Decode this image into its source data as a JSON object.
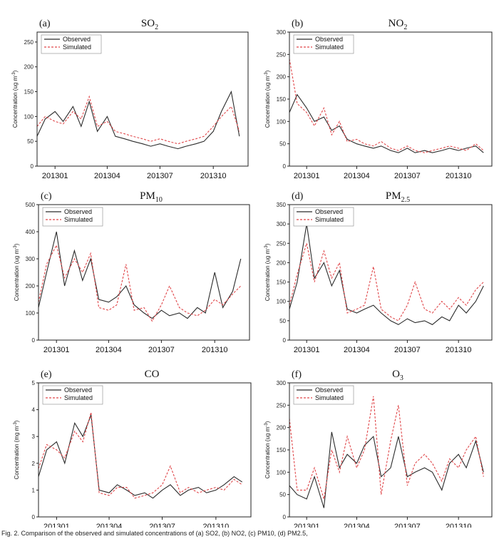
{
  "caption": "Fig. 2. Comparison of the observed and simulated concentrations of (a) SO2, (b) NO2, (c) PM10, (d) PM2.5,",
  "colors": {
    "observed": "#2b2b2b",
    "simulated": "#e0474a"
  },
  "chart_data": [
    {
      "panel": "(a)",
      "title": "SO",
      "title_sub": "2",
      "type": "line",
      "ylabel": "Concentration (ug m-3)",
      "yunit_sup": "-3",
      "ylim": [
        0,
        270
      ],
      "yticks": [
        0,
        50,
        100,
        150,
        200,
        250
      ],
      "xticks": [
        "201301",
        "201304",
        "201307",
        "201310"
      ],
      "x": [
        "2012-12-01",
        "2012-12-15",
        "2013-01-01",
        "2013-01-15",
        "2013-02-01",
        "2013-02-15",
        "2013-03-01",
        "2013-03-15",
        "2013-04-01",
        "2013-04-15",
        "2013-05-01",
        "2013-05-15",
        "2013-06-01",
        "2013-06-15",
        "2013-07-01",
        "2013-07-15",
        "2013-08-01",
        "2013-08-15",
        "2013-09-01",
        "2013-09-15",
        "2013-10-01",
        "2013-10-15",
        "2013-11-01",
        "2013-11-15"
      ],
      "series": [
        {
          "name": "Observed",
          "values": [
            60,
            95,
            110,
            90,
            120,
            80,
            130,
            70,
            100,
            60,
            55,
            50,
            45,
            40,
            45,
            40,
            35,
            40,
            45,
            50,
            70,
            110,
            150,
            60
          ]
        },
        {
          "name": "Simulated",
          "values": [
            80,
            100,
            90,
            85,
            110,
            95,
            140,
            80,
            90,
            70,
            65,
            60,
            55,
            50,
            55,
            50,
            45,
            50,
            55,
            60,
            80,
            100,
            120,
            70
          ]
        }
      ]
    },
    {
      "panel": "(b)",
      "title": "NO",
      "title_sub": "2",
      "type": "line",
      "ylabel": "Concentration (ug m-3)",
      "yunit_sup": "-3",
      "ylim": [
        0,
        300
      ],
      "yticks": [
        0,
        50,
        100,
        150,
        200,
        250,
        300
      ],
      "xticks": [
        "201301",
        "201304",
        "201307",
        "201310"
      ],
      "x": [
        "2012-12-01",
        "2012-12-15",
        "2013-01-01",
        "2013-01-15",
        "2013-02-01",
        "2013-02-15",
        "2013-03-01",
        "2013-03-15",
        "2013-04-01",
        "2013-04-15",
        "2013-05-01",
        "2013-05-15",
        "2013-06-01",
        "2013-06-15",
        "2013-07-01",
        "2013-07-15",
        "2013-08-01",
        "2013-08-15",
        "2013-09-01",
        "2013-09-15",
        "2013-10-01",
        "2013-10-15",
        "2013-11-01",
        "2013-11-15"
      ],
      "series": [
        {
          "name": "Observed",
          "values": [
            120,
            160,
            130,
            100,
            110,
            80,
            90,
            60,
            50,
            45,
            40,
            45,
            35,
            30,
            40,
            30,
            35,
            30,
            35,
            40,
            35,
            40,
            45,
            30
          ]
        },
        {
          "name": "Simulated",
          "values": [
            240,
            140,
            120,
            90,
            130,
            70,
            100,
            55,
            60,
            50,
            45,
            55,
            40,
            35,
            45,
            35,
            30,
            35,
            40,
            45,
            40,
            35,
            50,
            35
          ]
        }
      ]
    },
    {
      "panel": "(c)",
      "title": "PM",
      "title_sub": "10",
      "type": "line",
      "ylabel": "Concentration (ug m-3)",
      "yunit_sup": "-3",
      "ylim": [
        0,
        500
      ],
      "yticks": [
        0,
        100,
        200,
        300,
        400,
        500
      ],
      "xticks": [
        "201301",
        "201304",
        "201307",
        "201310"
      ],
      "x": [
        "2012-12-01",
        "2012-12-15",
        "2013-01-01",
        "2013-01-15",
        "2013-02-01",
        "2013-02-15",
        "2013-03-01",
        "2013-03-15",
        "2013-04-01",
        "2013-04-15",
        "2013-05-01",
        "2013-05-15",
        "2013-06-01",
        "2013-06-15",
        "2013-07-01",
        "2013-07-15",
        "2013-08-01",
        "2013-08-15",
        "2013-09-01",
        "2013-09-15",
        "2013-10-01",
        "2013-10-15",
        "2013-11-01",
        "2013-11-15"
      ],
      "series": [
        {
          "name": "Observed",
          "values": [
            120,
            250,
            400,
            200,
            330,
            220,
            300,
            150,
            140,
            160,
            200,
            130,
            100,
            80,
            110,
            90,
            100,
            80,
            120,
            100,
            250,
            120,
            180,
            300
          ]
        },
        {
          "name": "Simulated",
          "values": [
            140,
            280,
            350,
            230,
            300,
            250,
            320,
            120,
            110,
            130,
            280,
            110,
            120,
            70,
            130,
            200,
            120,
            100,
            90,
            110,
            150,
            130,
            170,
            200
          ]
        }
      ]
    },
    {
      "panel": "(d)",
      "title": "PM",
      "title_sub": "2.5",
      "type": "line",
      "ylabel": "Concentration (ug m-3)",
      "yunit_sup": "-3",
      "ylim": [
        0,
        350
      ],
      "yticks": [
        0,
        50,
        100,
        150,
        200,
        250,
        300,
        350
      ],
      "xticks": [
        "201301",
        "201304",
        "201307",
        "201310"
      ],
      "x": [
        "2012-12-01",
        "2012-12-15",
        "2013-01-01",
        "2013-01-15",
        "2013-02-01",
        "2013-02-15",
        "2013-03-01",
        "2013-03-15",
        "2013-04-01",
        "2013-04-15",
        "2013-05-01",
        "2013-05-15",
        "2013-06-01",
        "2013-06-15",
        "2013-07-01",
        "2013-07-15",
        "2013-08-01",
        "2013-08-15",
        "2013-09-01",
        "2013-09-15",
        "2013-10-01",
        "2013-10-15",
        "2013-11-01",
        "2013-11-15"
      ],
      "series": [
        {
          "name": "Observed",
          "values": [
            80,
            150,
            300,
            160,
            200,
            140,
            180,
            80,
            70,
            80,
            90,
            70,
            50,
            40,
            55,
            45,
            50,
            40,
            60,
            50,
            90,
            70,
            100,
            140
          ]
        },
        {
          "name": "Simulated",
          "values": [
            90,
            170,
            250,
            150,
            230,
            160,
            200,
            70,
            80,
            90,
            190,
            80,
            60,
            50,
            90,
            150,
            80,
            70,
            100,
            80,
            110,
            90,
            130,
            150
          ]
        }
      ]
    },
    {
      "panel": "(e)",
      "title": "CO",
      "title_sub": "",
      "type": "line",
      "ylabel": "Concentration (mg m-3)",
      "yunit_sup": "-3",
      "ylim": [
        0,
        5
      ],
      "yticks": [
        0,
        1,
        2,
        3,
        4,
        5
      ],
      "xticks": [
        "201301",
        "201304",
        "201307",
        "201310"
      ],
      "x": [
        "2012-12-01",
        "2012-12-15",
        "2013-01-01",
        "2013-01-15",
        "2013-02-01",
        "2013-02-15",
        "2013-03-01",
        "2013-03-15",
        "2013-04-01",
        "2013-04-15",
        "2013-05-01",
        "2013-05-15",
        "2013-06-01",
        "2013-06-15",
        "2013-07-01",
        "2013-07-15",
        "2013-08-01",
        "2013-08-15",
        "2013-09-01",
        "2013-09-15",
        "2013-10-01",
        "2013-10-15",
        "2013-11-01",
        "2013-11-15"
      ],
      "series": [
        {
          "name": "Observed",
          "values": [
            1.5,
            2.5,
            2.8,
            2.0,
            3.5,
            3.0,
            3.8,
            1.0,
            0.9,
            1.2,
            1.0,
            0.8,
            0.9,
            0.7,
            1.0,
            1.2,
            0.8,
            1.0,
            1.1,
            0.9,
            1.0,
            1.2,
            1.5,
            1.3
          ]
        },
        {
          "name": "Simulated",
          "values": [
            1.8,
            2.7,
            2.5,
            2.2,
            3.2,
            2.8,
            3.9,
            0.9,
            0.8,
            1.1,
            1.1,
            0.7,
            0.8,
            0.9,
            1.2,
            1.9,
            0.9,
            1.1,
            0.9,
            1.0,
            1.1,
            1.0,
            1.4,
            1.2
          ]
        }
      ]
    },
    {
      "panel": "(f)",
      "title": "O",
      "title_sub": "3",
      "type": "line",
      "ylabel": "Concentration (ug m-3)",
      "yunit_sup": "-3",
      "ylim": [
        0,
        300
      ],
      "yticks": [
        0,
        50,
        100,
        150,
        200,
        250,
        300
      ],
      "xticks": [
        "201301",
        "201304",
        "201307",
        "201310"
      ],
      "x": [
        "2012-12-01",
        "2012-12-15",
        "2013-01-01",
        "2013-01-15",
        "2013-02-01",
        "2013-02-15",
        "2013-03-01",
        "2013-03-15",
        "2013-04-01",
        "2013-04-15",
        "2013-05-01",
        "2013-05-15",
        "2013-06-01",
        "2013-06-15",
        "2013-07-01",
        "2013-07-15",
        "2013-08-01",
        "2013-08-15",
        "2013-09-01",
        "2013-09-15",
        "2013-10-01",
        "2013-10-15",
        "2013-11-01",
        "2013-11-15"
      ],
      "series": [
        {
          "name": "Observed",
          "values": [
            70,
            50,
            40,
            90,
            20,
            190,
            110,
            140,
            120,
            160,
            180,
            90,
            110,
            180,
            90,
            100,
            110,
            100,
            60,
            120,
            140,
            110,
            170,
            100
          ]
        },
        {
          "name": "Simulated",
          "values": [
            220,
            60,
            60,
            110,
            40,
            150,
            100,
            180,
            110,
            150,
            270,
            50,
            170,
            250,
            70,
            120,
            140,
            120,
            80,
            130,
            110,
            150,
            180,
            90
          ]
        }
      ]
    }
  ]
}
